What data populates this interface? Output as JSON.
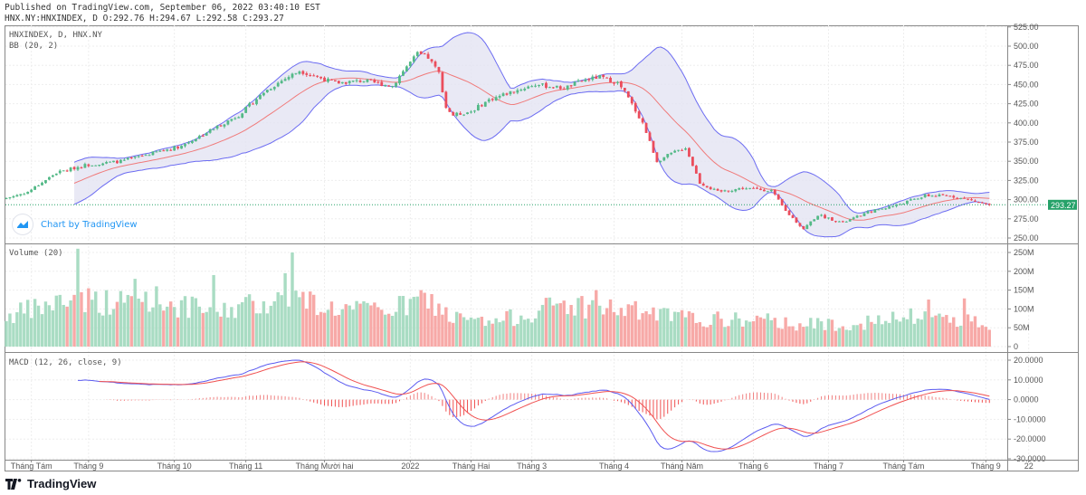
{
  "header": {
    "published": "Published on TradingView.com, September 06, 2022 03:40:10 EST",
    "ohlc": "HNX.NY:HNXINDEX, D O:292.76 H:294.67 L:292.58 C:293.27"
  },
  "panes": {
    "main_title": "HNXINDEX, D, HNX.NY",
    "bb_title": "BB (20, 2)",
    "volume_title": "Volume (20)",
    "macd_title": "MACD (12, 26, close, 9)"
  },
  "badge": {
    "chart_by": "Chart by TradingView",
    "brand": "TradingView"
  },
  "colors": {
    "up": "#53b987",
    "down": "#eb4d5c",
    "vol_up": "#a9dcc3",
    "vol_down": "#f7a9a7",
    "bb_line": "#6c6cf2",
    "bb_basis": "#f07a7a",
    "bb_fill": "#e3e3f3",
    "macd": "#5b5bf0",
    "signal": "#f05050",
    "last": "#26a269"
  },
  "chart_data": {
    "type": "candlestick",
    "last_price": "293.27",
    "price_axis": {
      "ylim": [
        245,
        527
      ],
      "ticks": [
        "525.00",
        "500.00",
        "475.00",
        "450.00",
        "425.00",
        "400.00",
        "375.00",
        "350.00",
        "325.00",
        "300.00",
        "275.00",
        "250.00"
      ]
    },
    "volume_axis": {
      "ylim": [
        0,
        260
      ],
      "ticks": [
        "250M",
        "200M",
        "150M",
        "100M",
        "50M",
        "0"
      ]
    },
    "macd_axis": {
      "ylim": [
        -31,
        21
      ],
      "ticks": [
        "20.0000",
        "10.0000",
        "0.0000",
        "-10.0000",
        "-20.0000",
        "-30.0000"
      ]
    },
    "x_ticks": [
      {
        "label": "Tháng Tám",
        "bar": 7
      },
      {
        "label": "Tháng 9",
        "bar": 23
      },
      {
        "label": "Tháng 10",
        "bar": 47
      },
      {
        "label": "Tháng 11",
        "bar": 67
      },
      {
        "label": "Tháng Mười hai",
        "bar": 89
      },
      {
        "label": "2022",
        "bar": 113
      },
      {
        "label": "Tháng Hai",
        "bar": 130
      },
      {
        "label": "Tháng 3",
        "bar": 147
      },
      {
        "label": "Tháng 4",
        "bar": 170
      },
      {
        "label": "Tháng Năm",
        "bar": 189
      },
      {
        "label": "Tháng 6",
        "bar": 209
      },
      {
        "label": "Tháng 7",
        "bar": 230
      },
      {
        "label": "Tháng Tám",
        "bar": 251
      },
      {
        "label": "Tháng 9",
        "bar": 274
      },
      {
        "label": "22",
        "bar": 286
      }
    ],
    "bars": 276,
    "close_keypoints": [
      [
        0,
        302
      ],
      [
        6,
        310
      ],
      [
        14,
        335
      ],
      [
        22,
        345
      ],
      [
        32,
        350
      ],
      [
        42,
        362
      ],
      [
        49,
        370
      ],
      [
        57,
        390
      ],
      [
        65,
        410
      ],
      [
        72,
        440
      ],
      [
        77,
        455
      ],
      [
        82,
        468
      ],
      [
        87,
        460
      ],
      [
        92,
        452
      ],
      [
        100,
        455
      ],
      [
        108,
        448
      ],
      [
        111,
        468
      ],
      [
        115,
        490
      ],
      [
        118,
        485
      ],
      [
        121,
        465
      ],
      [
        123,
        420
      ],
      [
        125,
        410
      ],
      [
        130,
        415
      ],
      [
        135,
        430
      ],
      [
        141,
        440
      ],
      [
        148,
        450
      ],
      [
        156,
        445
      ],
      [
        161,
        455
      ],
      [
        166,
        460
      ],
      [
        171,
        452
      ],
      [
        173,
        440
      ],
      [
        178,
        400
      ],
      [
        182,
        350
      ],
      [
        186,
        360
      ],
      [
        190,
        368
      ],
      [
        194,
        322
      ],
      [
        199,
        310
      ],
      [
        206,
        315
      ],
      [
        214,
        312
      ],
      [
        218,
        285
      ],
      [
        223,
        262
      ],
      [
        227,
        280
      ],
      [
        234,
        270
      ],
      [
        242,
        285
      ],
      [
        249,
        293
      ],
      [
        257,
        305
      ],
      [
        264,
        305
      ],
      [
        269,
        300
      ],
      [
        275,
        293.27
      ]
    ],
    "volume_keypoints_M": [
      [
        0,
        85
      ],
      [
        10,
        110
      ],
      [
        20,
        140
      ],
      [
        30,
        120
      ],
      [
        40,
        140
      ],
      [
        50,
        110
      ],
      [
        60,
        100
      ],
      [
        70,
        120
      ],
      [
        80,
        140
      ],
      [
        90,
        110
      ],
      [
        100,
        100
      ],
      [
        110,
        110
      ],
      [
        118,
        130
      ],
      [
        125,
        80
      ],
      [
        135,
        65
      ],
      [
        145,
        90
      ],
      [
        155,
        120
      ],
      [
        165,
        110
      ],
      [
        175,
        100
      ],
      [
        185,
        85
      ],
      [
        195,
        75
      ],
      [
        205,
        75
      ],
      [
        215,
        70
      ],
      [
        225,
        62
      ],
      [
        235,
        65
      ],
      [
        245,
        70
      ],
      [
        255,
        85
      ],
      [
        265,
        80
      ],
      [
        275,
        65
      ]
    ],
    "volume_spikes_M": [
      [
        20,
        260
      ],
      [
        36,
        180
      ],
      [
        58,
        190
      ],
      [
        78,
        195
      ],
      [
        80,
        250
      ],
      [
        116,
        150
      ],
      [
        165,
        150
      ],
      [
        258,
        125
      ],
      [
        268,
        128
      ]
    ]
  }
}
